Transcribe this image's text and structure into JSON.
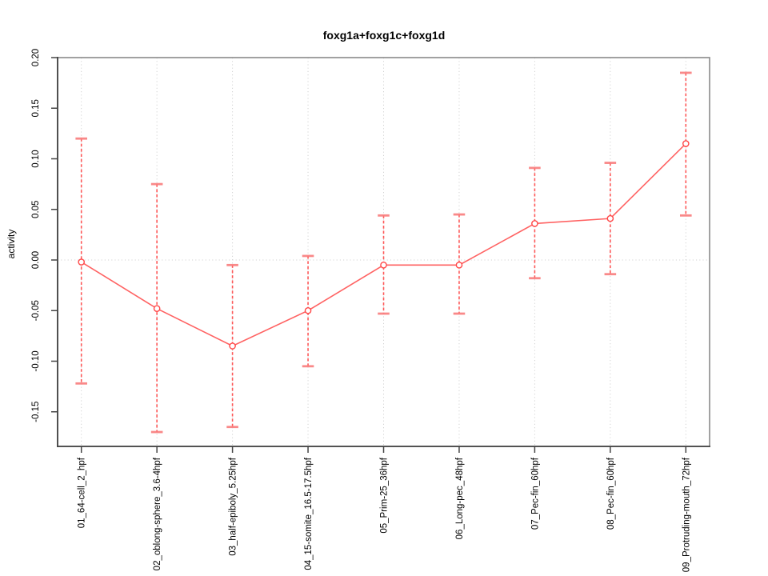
{
  "header": {
    "title": "foxg1a+foxg1c+foxg1d"
  },
  "chart_data": {
    "type": "line",
    "title": "foxg1a+foxg1c+foxg1d",
    "xlabel": "",
    "ylabel": "activity",
    "categories": [
      "01_64-cell_2_hpf",
      "02_oblong-sphere_3.6-4hpf",
      "03_half-epiboly_5.25hpf",
      "04_15-somite_16.5-17.5hpf",
      "05_Prim-25_36hpf",
      "06_Long-pec_48hpf",
      "07_Pec-fin_60hpf",
      "08_Pec-fin_60hpf",
      "09_Protruding-mouth_72hpf"
    ],
    "series": [
      {
        "name": "activity",
        "values": [
          -0.002,
          -0.048,
          -0.085,
          -0.05,
          -0.005,
          -0.005,
          0.036,
          0.041,
          0.115
        ],
        "error_low": [
          -0.122,
          -0.17,
          -0.165,
          -0.105,
          -0.053,
          -0.053,
          -0.018,
          -0.014,
          0.044
        ],
        "error_high": [
          0.12,
          0.075,
          -0.005,
          0.004,
          0.044,
          0.045,
          0.091,
          0.096,
          0.185
        ]
      }
    ],
    "ylim": [
      -0.1842,
      0.2
    ],
    "ytick_values": [
      0.2,
      0.15,
      0.1,
      0.05,
      0.0,
      -0.05,
      -0.1,
      -0.15
    ],
    "ytick_labels": [
      "0.20",
      "0.15",
      "0.10",
      "0.05",
      "0.00",
      "-0.05",
      "-0.10",
      "-0.15"
    ],
    "grid": "dotted vertical line at each category; dotted horizontal line at y=0",
    "legend": "none",
    "colors": {
      "series_red": "#ff4747",
      "error_cap_red": "#f97d7d",
      "grid_gray": "#d2d2d2",
      "box_gray": "#8a8a8a",
      "axis_dark": "#454545",
      "text_black": "#000000"
    }
  }
}
